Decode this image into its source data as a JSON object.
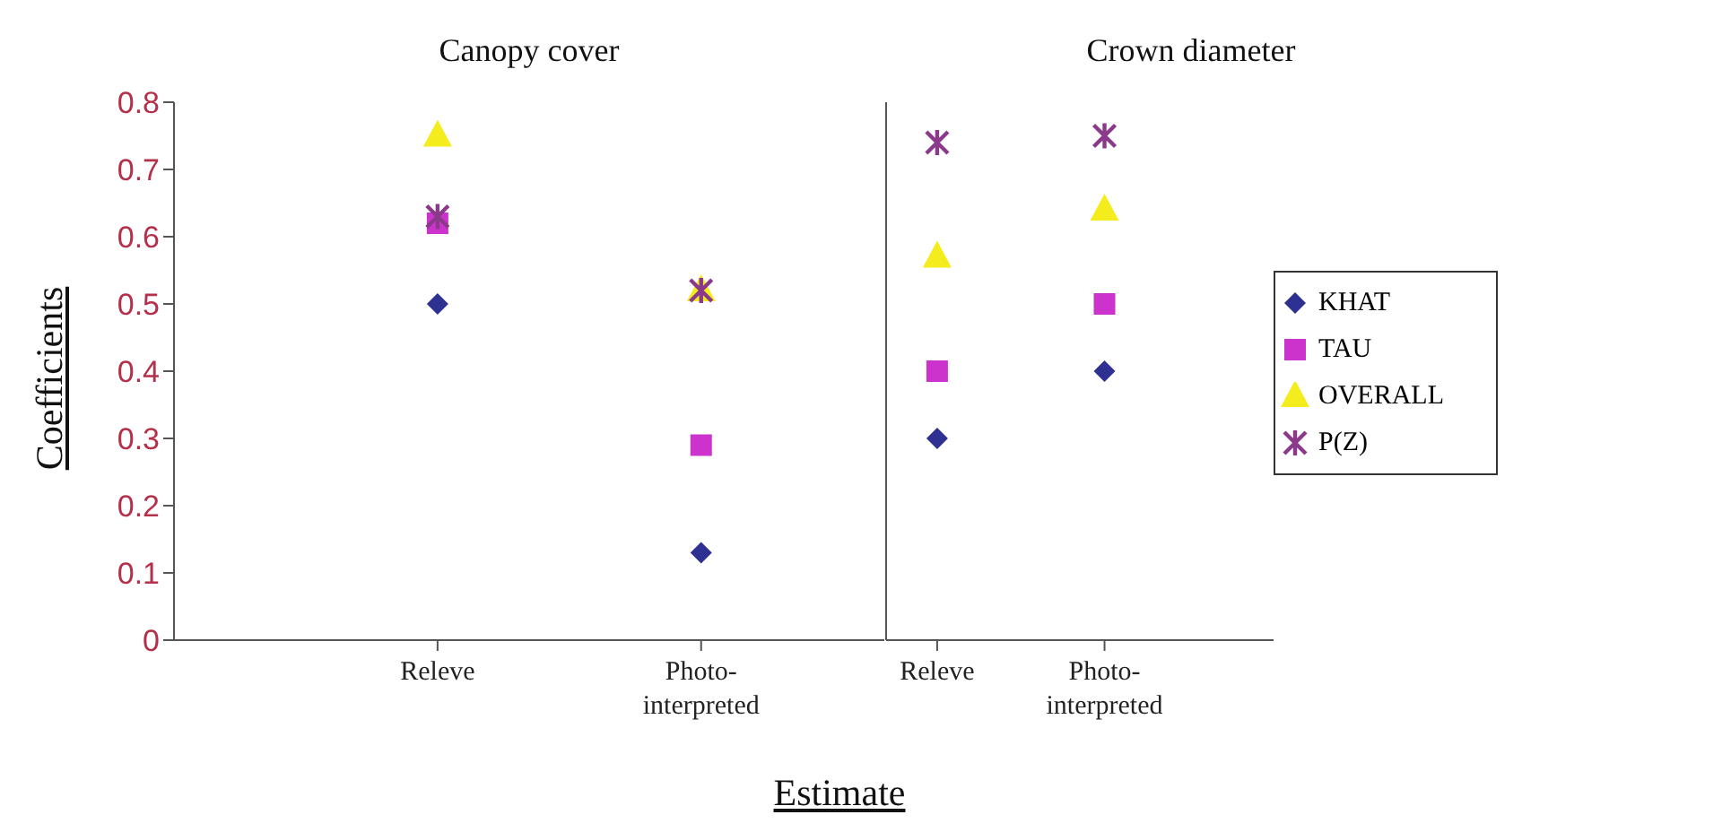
{
  "chart_data": [
    {
      "type": "scatter",
      "title": "Canopy cover",
      "xlabel": "Estimate",
      "ylabel": "Coefficients",
      "categories": [
        "Releve",
        "Photo-interpreted"
      ],
      "ylim": [
        0,
        0.8
      ],
      "yticks": [
        0,
        0.1,
        0.2,
        0.3,
        0.4,
        0.5,
        0.6,
        0.7,
        0.8
      ],
      "grid": false,
      "legend": false,
      "series": [
        {
          "color": "#2e3192",
          "marker": "diamond",
          "values": [
            0.5,
            0.13
          ]
        },
        {
          "color": "#cc33cc",
          "marker": "square",
          "values": [
            0.62,
            0.29
          ]
        },
        {
          "color": "#f5ec1e",
          "marker": "triangle",
          "values": [
            0.75,
            0.52
          ]
        },
        {
          "color": "#8b3a8b",
          "marker": "cross",
          "values": [
            0.63,
            0.52
          ]
        }
      ]
    },
    {
      "type": "scatter",
      "title": "Crown diameter",
      "categories": [
        "Releve",
        "Photo-interpreted"
      ],
      "ylim": [
        0,
        0.8
      ],
      "tick_labels": "x",
      "grid": false,
      "legend": "right",
      "series": [
        {
          "name": "KHAT",
          "color": "#2e3192",
          "marker": "diamond",
          "values": [
            0.3,
            0.4
          ]
        },
        {
          "name": "TAU",
          "color": "#cc33cc",
          "marker": "square",
          "values": [
            0.4,
            0.5
          ]
        },
        {
          "name": "OVERALL",
          "color": "#f5ec1e",
          "marker": "triangle",
          "values": [
            0.57,
            0.64
          ]
        },
        {
          "name": "P(Z)",
          "color": "#8b3a8b",
          "marker": "cross",
          "values": [
            0.74,
            0.75
          ]
        }
      ]
    }
  ]
}
